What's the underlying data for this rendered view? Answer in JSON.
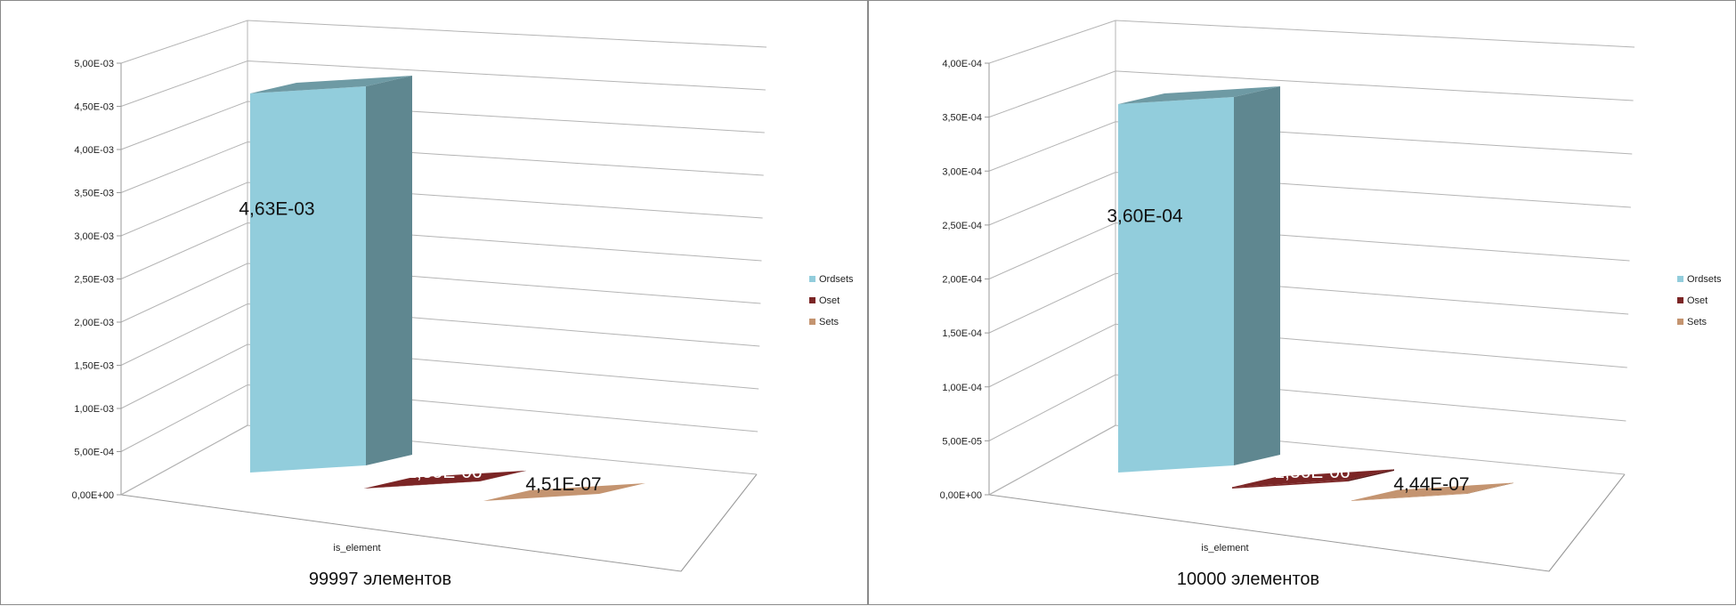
{
  "chart_data": [
    {
      "type": "bar",
      "categories": [
        "is_element"
      ],
      "series": [
        {
          "name": "Ordsets",
          "values": [
            0.00463
          ],
          "color": "#92cddc",
          "label": "4,63E-03"
        },
        {
          "name": "Oset",
          "values": [
            1.85e-06
          ],
          "color": "#7b2525",
          "label": "1,85E-06"
        },
        {
          "name": "Sets",
          "values": [
            4.51e-07
          ],
          "color": "#c49470",
          "label": "4,51E-07"
        }
      ],
      "ylim": [
        0,
        0.005
      ],
      "yticks": [
        "0,00E+00",
        "5,00E-04",
        "1,00E-03",
        "1,50E-03",
        "2,00E-03",
        "2,50E-03",
        "3,00E-03",
        "3,50E-03",
        "4,00E-03",
        "4,50E-03",
        "5,00E-03"
      ],
      "caption": "99997 элементов",
      "legend_position": "right",
      "grid": true,
      "projection": "3d"
    },
    {
      "type": "bar",
      "categories": [
        "is_element"
      ],
      "series": [
        {
          "name": "Ordsets",
          "values": [
            0.00036
          ],
          "color": "#92cddc",
          "label": "3,60E-04"
        },
        {
          "name": "Oset",
          "values": [
            1.36e-06
          ],
          "color": "#7b2525",
          "label": "1,36E-06"
        },
        {
          "name": "Sets",
          "values": [
            4.44e-07
          ],
          "color": "#c49470",
          "label": "4,44E-07"
        }
      ],
      "ylim": [
        0,
        0.0004
      ],
      "yticks": [
        "0,00E+00",
        "5,00E-05",
        "1,00E-04",
        "1,50E-04",
        "2,00E-04",
        "2,50E-04",
        "3,00E-04",
        "3,50E-04",
        "4,00E-04"
      ],
      "caption": "10000 элементов",
      "legend_position": "right",
      "grid": true,
      "projection": "3d"
    }
  ]
}
